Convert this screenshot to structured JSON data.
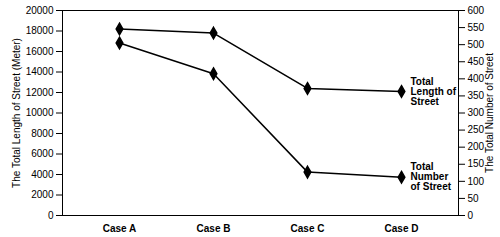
{
  "chart_data": {
    "type": "line",
    "categories": [
      "Case A",
      "Case B",
      "Case C",
      "Case D"
    ],
    "ylabel": "The Total Length of Street (Meter)",
    "y2label": "The Total Number of Street",
    "ylim": [
      0,
      20000
    ],
    "yticks": [
      0,
      2000,
      4000,
      6000,
      8000,
      10000,
      12000,
      14000,
      16000,
      18000,
      20000
    ],
    "y2lim": [
      0,
      600
    ],
    "y2ticks": [
      0,
      50,
      100,
      150,
      200,
      250,
      300,
      350,
      400,
      450,
      500,
      550,
      600
    ],
    "grid": false,
    "series": [
      {
        "name": "Total Length of Street",
        "color": "#000000",
        "marker": "diamond",
        "values": [
          18200,
          17800,
          12400,
          12100
        ]
      },
      {
        "name": "Total Number of Street",
        "color": "#000000",
        "marker": "diamond",
        "axis": "y2",
        "values": [
          505,
          415,
          127,
          112
        ]
      }
    ]
  }
}
